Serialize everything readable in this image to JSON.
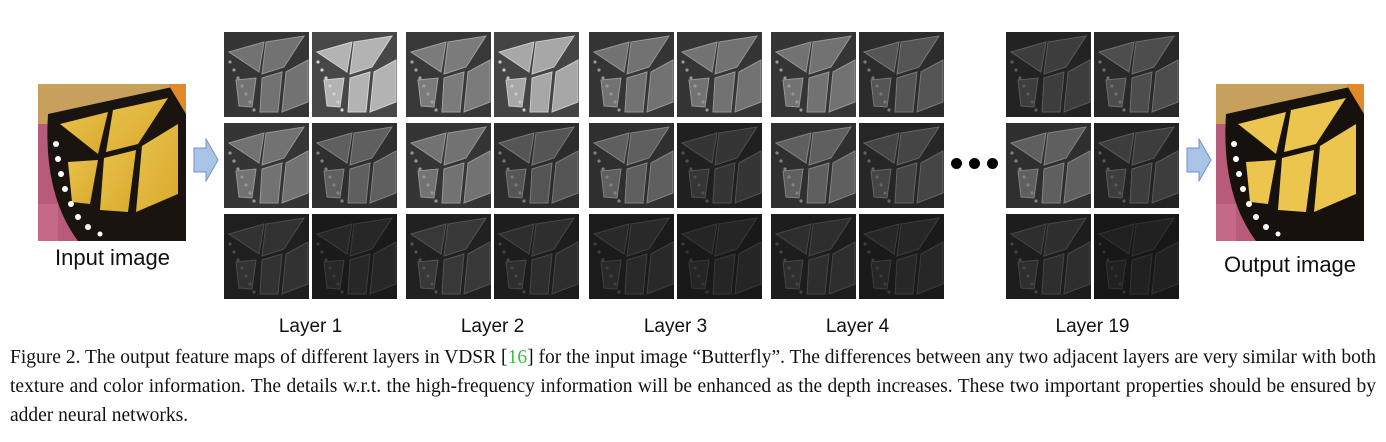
{
  "figure": {
    "input_label": "Input image",
    "output_label": "Output image",
    "layer_labels": [
      "Layer 1",
      "Layer 2",
      "Layer 3",
      "Layer 4",
      "Layer 19"
    ],
    "ellipsis": "•••",
    "arrow_color": "#a9c4e6"
  },
  "caption": {
    "lead": "Figure 2. The output feature maps of different layers in VDSR [",
    "ref": "16",
    "tail": "] for the input image “Butterfly”.  The differences between any two adjacent layers are very similar with both texture and color information. The details w.r.t. the high-frequency information will be enhanced as the depth increases. These two important properties should be ensured by adder neural networks.",
    "ref_color": "#38c238"
  }
}
